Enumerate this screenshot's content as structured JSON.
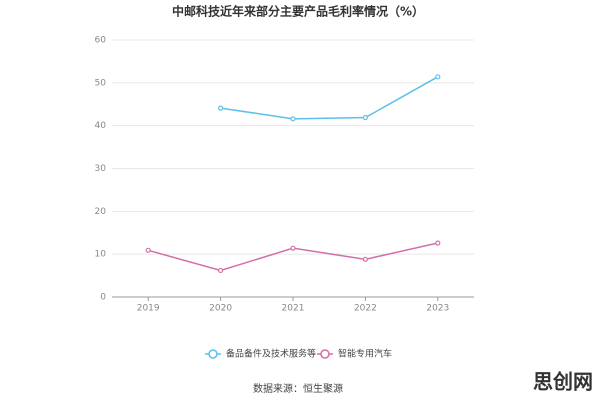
{
  "chart_data": {
    "type": "line",
    "title": "中邮科技近年来部分主要产品毛利率情况（%）",
    "categories": [
      "2019",
      "2020",
      "2021",
      "2022",
      "2023"
    ],
    "series": [
      {
        "name": "备品备件及技术服务等",
        "color": "#5bc0eb",
        "values": [
          null,
          44.1,
          41.6,
          41.9,
          51.4
        ]
      },
      {
        "name": "智能专用汽车",
        "color": "#d36fa9",
        "values": [
          10.9,
          6.2,
          11.4,
          8.8,
          12.6
        ]
      }
    ],
    "ylim": [
      0,
      60
    ],
    "yticks": [
      0,
      10,
      20,
      30,
      40,
      50,
      60
    ],
    "grid": true,
    "source": "数据来源：恒生聚源",
    "watermark": "思创网"
  }
}
